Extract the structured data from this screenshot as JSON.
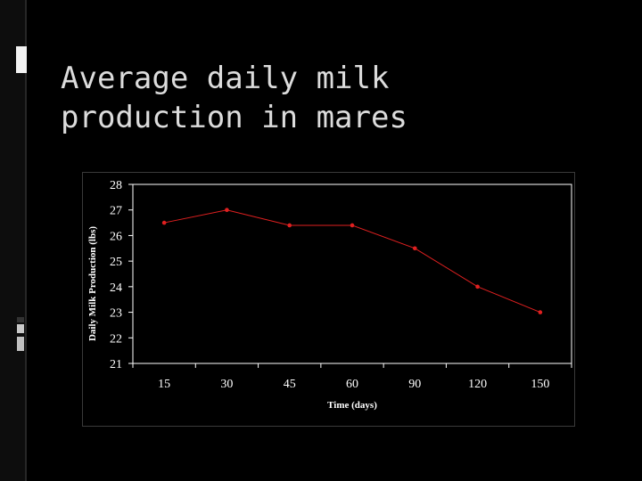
{
  "slide": {
    "title_line1": "Average daily milk",
    "title_line2": "production in mares"
  },
  "colors": {
    "background": "#000000",
    "line": "#e02020",
    "plot_border": "#ffffff",
    "text": "#ffffff",
    "title": "#dcdcdc",
    "accent_bar": "#f2f2f2"
  },
  "chart_data": {
    "type": "line",
    "title": "",
    "xlabel": "Time (days)",
    "ylabel": "Daily Milk Production (lbs)",
    "categories": [
      "15",
      "30",
      "45",
      "60",
      "90",
      "120",
      "150"
    ],
    "series": [
      {
        "values": [
          26.5,
          27,
          26.4,
          26.4,
          25.5,
          24,
          23
        ]
      }
    ],
    "ylim": [
      21,
      28
    ],
    "yticks": [
      21,
      22,
      23,
      24,
      25,
      26,
      27,
      28
    ],
    "grid": false,
    "legend": "none"
  }
}
